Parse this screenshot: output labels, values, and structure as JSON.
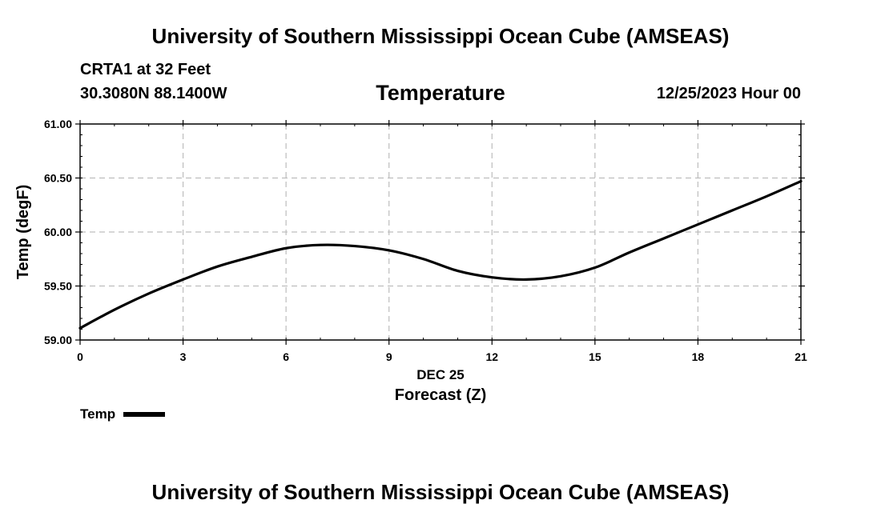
{
  "header": {
    "title": "University of Southern Mississippi Ocean Cube (AMSEAS)",
    "station": "CRTA1 at 32 Feet",
    "coordinates": "30.3080N  88.1400W",
    "chart_title": "Temperature",
    "datetime": "12/25/2023 Hour 00"
  },
  "footer": {
    "title": "University of Southern Mississippi Ocean Cube (AMSEAS)"
  },
  "legend": {
    "label": "Temp",
    "color": "#000000"
  },
  "chart_data": {
    "type": "line",
    "title": "Temperature",
    "xlabel": "Forecast (Z)",
    "x_date_label": "DEC 25",
    "ylabel": "Temp (degF)",
    "xlim": [
      0,
      21
    ],
    "ylim": [
      59.0,
      61.0
    ],
    "x_ticks": [
      0,
      3,
      6,
      9,
      12,
      15,
      18,
      21
    ],
    "x_tick_labels": [
      "0",
      "3",
      "6",
      "9",
      "12",
      "15",
      "18",
      "21"
    ],
    "y_ticks": [
      59.0,
      59.5,
      60.0,
      60.5,
      61.0
    ],
    "y_tick_labels": [
      "59.00",
      "59.50",
      "60.00",
      "60.50",
      "61.00"
    ],
    "grid": true,
    "series": [
      {
        "name": "Temp",
        "color": "#000000",
        "x": [
          0,
          1,
          2,
          3,
          4,
          5,
          6,
          7,
          8,
          9,
          10,
          11,
          12,
          13,
          14,
          15,
          16,
          17,
          18,
          19,
          20,
          21
        ],
        "values": [
          59.11,
          59.28,
          59.43,
          59.56,
          59.68,
          59.77,
          59.85,
          59.88,
          59.87,
          59.83,
          59.75,
          59.64,
          59.58,
          59.56,
          59.59,
          59.67,
          59.81,
          59.94,
          60.07,
          60.2,
          60.33,
          60.47
        ]
      }
    ]
  }
}
